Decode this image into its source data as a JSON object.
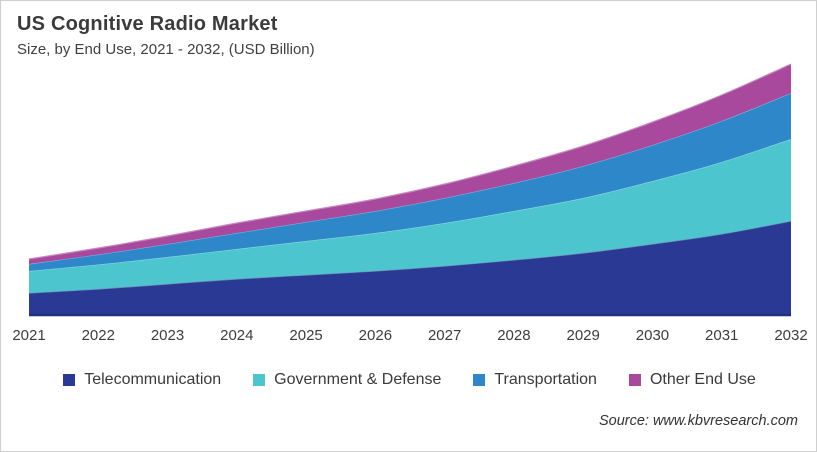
{
  "header": {
    "title": "US Cognitive Radio Market",
    "subtitle": "Size, by End Use, 2021 - 2032, (USD Billion)"
  },
  "footer": {
    "source": "Source: www.kbvresearch.com"
  },
  "colors": {
    "telecommunication": "#2A3A94",
    "government_defense": "#4DC5CE",
    "transportation": "#2E87C8",
    "other_end_use": "#A9499D",
    "baseline_edge": "#202F7E",
    "text": "#3B3B3B",
    "frame_border": "#CFCFCF",
    "background": "#FFFFFF"
  },
  "chart_data": {
    "type": "area",
    "stacked": true,
    "title": "US Cognitive Radio Market",
    "subtitle": "Size, by End Use, 2021 - 2032, (USD Billion)",
    "x": [
      2021,
      2022,
      2023,
      2024,
      2025,
      2026,
      2027,
      2028,
      2029,
      2030,
      2031,
      2032
    ],
    "series": [
      {
        "name": "Telecommunication",
        "color": "#2A3A94",
        "values": [
          23,
          27,
          32,
          37,
          41,
          45,
          50,
          56,
          63,
          72,
          82,
          95
        ]
      },
      {
        "name": "Government & Defense",
        "color": "#4DC5CE",
        "values": [
          22,
          24.5,
          27,
          30,
          34,
          38,
          43,
          49,
          55,
          63,
          72,
          82
        ]
      },
      {
        "name": "Transportation",
        "color": "#2E87C8",
        "values": [
          7,
          10,
          13,
          16,
          19,
          22,
          25,
          28,
          32,
          36,
          41,
          46
        ]
      },
      {
        "name": "Other End Use",
        "color": "#A9499D",
        "values": [
          5,
          6.5,
          8,
          10,
          11,
          12,
          14,
          17,
          20,
          23,
          26,
          29
        ]
      }
    ],
    "totals": [
      57,
      68,
      80,
      93,
      105,
      117,
      132,
      150,
      170,
      194,
      221,
      252
    ],
    "xlabel": "",
    "ylabel": "",
    "unit_note": "USD Billion; y-axis not drawn in figure, series values are relative heights estimated from the plot",
    "y_axis_shown": false,
    "grid": false,
    "legend_position": "bottom"
  }
}
